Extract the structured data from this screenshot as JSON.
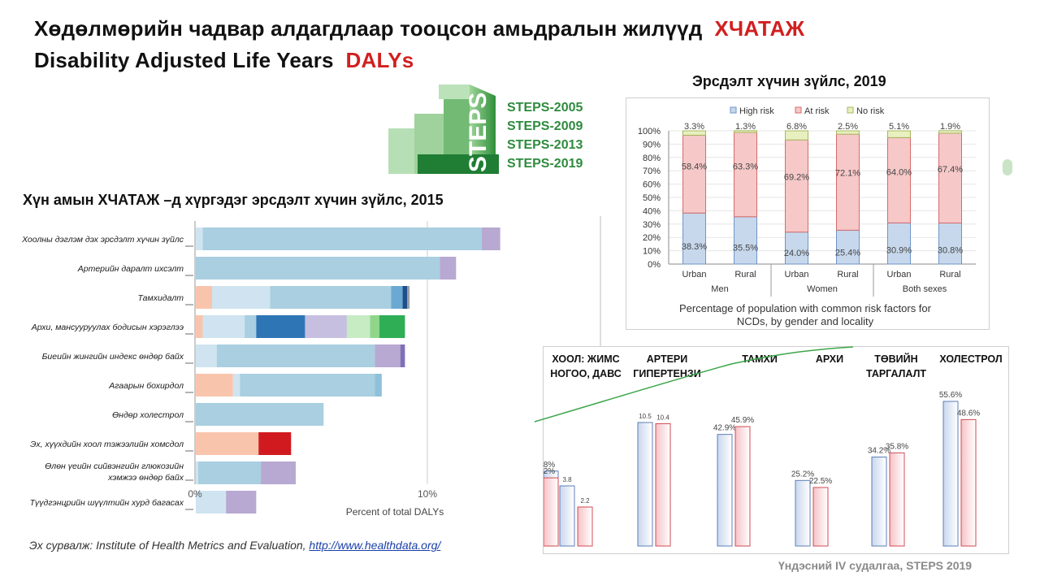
{
  "slide": {
    "title_line1": "Хөдөлмөрийн  чадвар  алдагдлаар тооцсон амьдралын  жилүүд",
    "title_line1_accent": "ХЧАТАЖ",
    "title_line2": "Disability Adjusted  Life Years",
    "title_line2_accent": "DALYs",
    "risk_title_2019": "Эрсдэлт хүчин  зүйлс, 2019",
    "daly_title_2015": "Хүн  амын ХЧАТАЖ –д  хүргэдэг  эрсдэлт хүчин  зүйлс, 2015",
    "source_prefix": "Эх сурвалж: Institute of Health Metrics and Evaluation,",
    "source_link": "http://www.healthdata.org/",
    "footer": "Үндэсний  IV судалгаа, STEPS 2019",
    "accent_color": "#d21f1f"
  },
  "steps_logo": {
    "word": "STEPS",
    "years": [
      "STEPS-2005",
      "STEPS-2009",
      "STEPS-2013",
      "STEPS-2019"
    ],
    "color": "#2e8b3e"
  },
  "chart_data": [
    {
      "type": "bar",
      "orientation": "horizontal",
      "stacked": true,
      "categories": [
        "Хоолны дэглэм дэх эрсдэлт хүчин зүйлс",
        "Артерийн даралт ихсэлт",
        "Тамхидалт",
        "Архи, мансууруулах бодисын хэрэглээ",
        "Биеийн жингийн индекс өндөр байх",
        "Агаарын бохирдол",
        "Өндөр холестрол",
        "Эх, хүүхдийн хоол тэжээлийн хомсдол",
        "Өлөн үеийн сийвэнгийн глюкозийн хэмжээ өндөр байх",
        "Түүдгэнцрийн шүүлтийн хурд багасах"
      ],
      "segments": [
        [
          {
            "value": 0.3,
            "color": "#cfe4f0"
          },
          {
            "value": 12.0,
            "color": "#a9cfe0"
          },
          {
            "value": 0.8,
            "color": "#b7a9d2"
          }
        ],
        [
          {
            "value": 10.5,
            "color": "#a9cfe0"
          },
          {
            "value": 0.7,
            "color": "#b7a9d2"
          }
        ],
        [
          {
            "value": 0.7,
            "color": "#f9c4ac"
          },
          {
            "value": 2.5,
            "color": "#cfe4f0"
          },
          {
            "value": 5.2,
            "color": "#a9cfe0"
          },
          {
            "value": 0.5,
            "color": "#6ba9d4"
          },
          {
            "value": 0.2,
            "color": "#1f4e89"
          },
          {
            "value": 0.1,
            "color": "#9aa0a6"
          }
        ],
        [
          {
            "value": 0.3,
            "color": "#f9c4ac"
          },
          {
            "value": 1.8,
            "color": "#cfe4f0"
          },
          {
            "value": 0.5,
            "color": "#a9cfe0"
          },
          {
            "value": 2.1,
            "color": "#2e75b6"
          },
          {
            "value": 1.8,
            "color": "#c6bfe0"
          },
          {
            "value": 1.0,
            "color": "#c7ecc4"
          },
          {
            "value": 0.4,
            "color": "#8fd68a"
          },
          {
            "value": 1.1,
            "color": "#2fae56"
          }
        ],
        [
          {
            "value": 0.9,
            "color": "#cfe4f0"
          },
          {
            "value": 6.8,
            "color": "#a9cfe0"
          },
          {
            "value": 1.1,
            "color": "#b7a9d2"
          },
          {
            "value": 0.2,
            "color": "#7f70b8"
          }
        ],
        [
          {
            "value": 1.6,
            "color": "#f9c4ac"
          },
          {
            "value": 0.3,
            "color": "#cfe4f0"
          },
          {
            "value": 5.8,
            "color": "#a9cfe0"
          },
          {
            "value": 0.3,
            "color": "#8ec1db"
          }
        ],
        [
          {
            "value": 5.5,
            "color": "#a9cfe0"
          }
        ],
        [
          {
            "value": 2.7,
            "color": "#f9c4ac"
          },
          {
            "value": 1.4,
            "color": "#d11a1f"
          }
        ],
        [
          {
            "value": 0.1,
            "color": "#cfe4f0"
          },
          {
            "value": 2.7,
            "color": "#a9cfe0"
          },
          {
            "value": 1.5,
            "color": "#b7a9d2"
          }
        ],
        [
          {
            "value": 1.3,
            "color": "#cfe4f0"
          },
          {
            "value": 1.3,
            "color": "#b7a9d2"
          }
        ]
      ],
      "xticks": [
        "0%",
        "10%"
      ],
      "xlim": [
        0,
        19
      ],
      "xlabel": "Percent of total DALYs"
    },
    {
      "type": "bar",
      "stacked": true,
      "legend": [
        "High risk",
        "At risk",
        "No risk"
      ],
      "legend_position": "top",
      "colors": [
        "#c7d8ec",
        "#f6c8c8",
        "#e8f0c0"
      ],
      "border_colors": [
        "#6f95c8",
        "#d66b6b",
        "#a7b85e"
      ],
      "categories": [
        "Urban",
        "Rural",
        "Urban",
        "Rural",
        "Urban",
        "Rural"
      ],
      "groups": [
        "Men",
        "Women",
        "Both sexes"
      ],
      "series": [
        {
          "name": "High risk",
          "values": [
            38.3,
            35.5,
            24.0,
            25.4,
            30.9,
            30.8
          ],
          "labels": [
            "38.3%",
            "35.5%",
            "24.0%",
            "25.4%",
            "30.9%",
            "30.8%"
          ]
        },
        {
          "name": "At risk",
          "values": [
            58.4,
            63.3,
            69.2,
            72.1,
            64.0,
            67.4
          ],
          "labels": [
            "58.4%",
            "63.3%",
            "69.2%",
            "72.1%",
            "64.0%",
            "67.4%"
          ]
        },
        {
          "name": "No risk",
          "values": [
            3.3,
            1.3,
            6.8,
            2.5,
            5.1,
            1.9
          ],
          "labels": [
            "3.3%",
            "1.3%",
            "6.8%",
            "2.5%",
            "5.1%",
            "1.9%"
          ]
        }
      ],
      "yticks": [
        "0%",
        "10%",
        "20%",
        "30%",
        "40%",
        "50%",
        "60%",
        "70%",
        "80%",
        "90%",
        "100%"
      ],
      "ylim": [
        0,
        100
      ],
      "caption": "Percentage of population with common risk factors for NCDs, by gender and locality"
    },
    {
      "type": "bar",
      "group_labels": [
        [
          "ХООЛ: ЖИМС",
          "НОГОО, ДАВС"
        ],
        [
          "АРТЕРИ",
          "ГИПЕРТЕНЗИ"
        ],
        [
          "ТАМХИ"
        ],
        [
          "АРХИ"
        ],
        [
          "ТӨВИЙН",
          "ТАРГАЛАЛТ"
        ],
        [
          "ХОЛЕСТРОЛ"
        ]
      ],
      "bars": [
        {
          "value": 3.8,
          "label": "3.8",
          "color": "blue"
        },
        {
          "value": 2.2,
          "label": "2.2",
          "color": "red"
        },
        {
          "value": 10.5,
          "label": "10.5",
          "color": "blue"
        },
        {
          "value": 10.4,
          "label": "10.4",
          "color": "red"
        },
        {
          "value": 42.9,
          "label": "42.9%",
          "color": "blue"
        },
        {
          "value": 45.9,
          "label": "45.9%",
          "color": "red"
        },
        {
          "value": 25.2,
          "label": "25.2%",
          "color": "blue"
        },
        {
          "value": 22.5,
          "label": "22.5%",
          "color": "red"
        },
        {
          "value": 34.2,
          "label": "34.2%",
          "color": "blue"
        },
        {
          "value": 35.8,
          "label": "35.8%",
          "color": "red"
        },
        {
          "value": 55.6,
          "label": "55.6%",
          "color": "blue"
        },
        {
          "value": 48.6,
          "label": "48.6%",
          "color": "red"
        },
        {
          "value": 28.8,
          "label": "28.8%",
          "color": "blue"
        },
        {
          "value": 26.2,
          "label": "26.2%",
          "color": "red"
        }
      ]
    }
  ]
}
